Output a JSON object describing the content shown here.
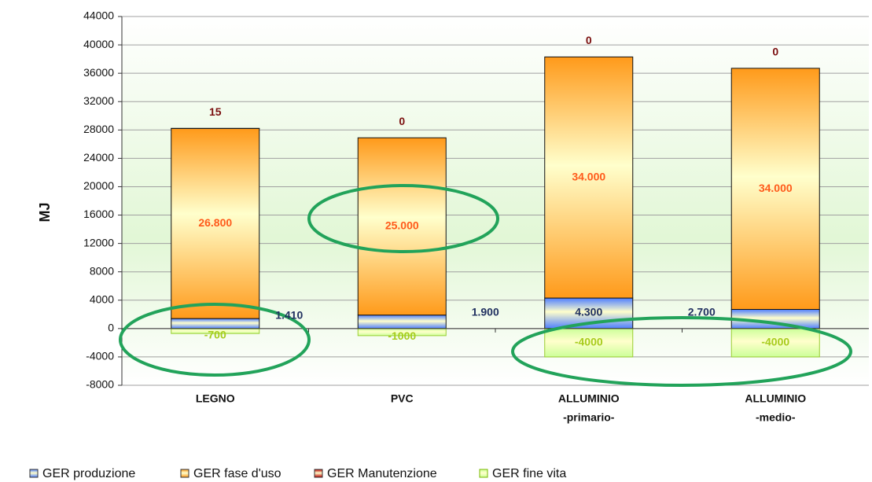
{
  "chart_data": {
    "type": "stacked_bar",
    "ylabel": "MJ",
    "categories": [
      [
        "LEGNO"
      ],
      [
        "PVC"
      ],
      [
        "ALLUMINIO",
        "-primario-"
      ],
      [
        "ALLUMINIO",
        "-medio-"
      ]
    ],
    "series": [
      {
        "name": "GER produzione",
        "color": "#4f7fff",
        "values": [
          1410,
          1900,
          4300,
          2700
        ],
        "value_labels": [
          "1.410",
          "1.900",
          "4.300",
          "2.700"
        ]
      },
      {
        "name": "GER fase d'uso",
        "color": "#ff9a1a",
        "values": [
          26800,
          25000,
          34000,
          34000
        ],
        "value_labels": [
          "26.800",
          "25.000",
          "34.000",
          "34.000"
        ]
      },
      {
        "name": "GER Manutenzione",
        "color": "#c00000",
        "values": [
          15,
          0,
          0,
          0
        ]
      },
      {
        "name": "GER fine vita",
        "color": "#ccff99",
        "values": [
          -700,
          -1000,
          -4000,
          -4000
        ]
      }
    ],
    "ylim": [
      -8000,
      44000
    ],
    "yticks": [
      -8000,
      -4000,
      0,
      4000,
      8000,
      12000,
      16000,
      20000,
      24000,
      28000,
      32000,
      36000,
      40000,
      44000
    ],
    "grid": true
  }
}
